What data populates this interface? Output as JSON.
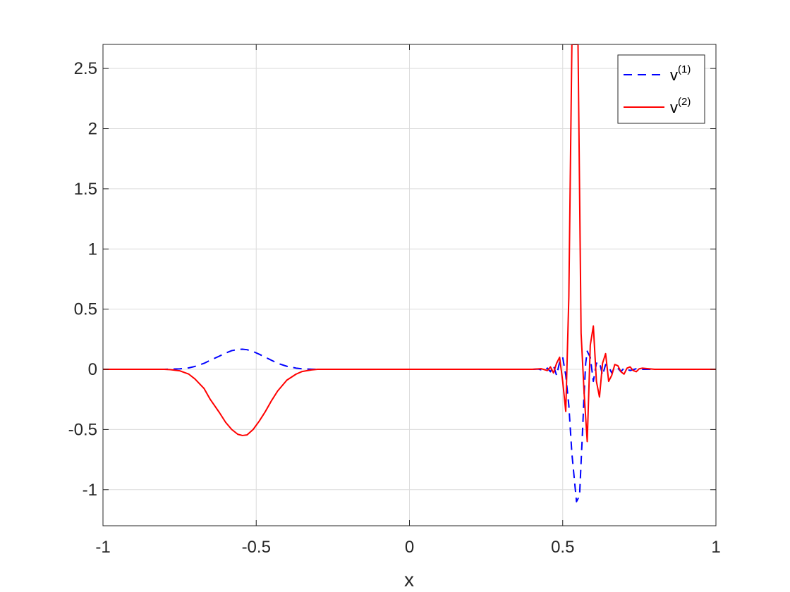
{
  "chart_data": {
    "type": "line",
    "title": "",
    "xlabel": "x",
    "ylabel": "",
    "xlim": [
      -1,
      1
    ],
    "ylim": [
      -1.3,
      2.7
    ],
    "xticks": [
      -1,
      -0.5,
      0,
      0.5,
      1
    ],
    "xtick_labels": [
      "-1",
      "-0.5",
      "0",
      "0.5",
      "1"
    ],
    "yticks": [
      -1,
      -0.5,
      0,
      0.5,
      1,
      1.5,
      2,
      2.5
    ],
    "ytick_labels": [
      "-1",
      "-0.5",
      "0",
      "0.5",
      "1",
      "1.5",
      "2",
      "2.5"
    ],
    "grid": true,
    "legend_position": "top-right",
    "series": [
      {
        "name": "v",
        "name_superscript": "(1)",
        "color": "#0000ff",
        "style": "dashed",
        "x": [
          -1,
          -0.8,
          -0.78,
          -0.75,
          -0.72,
          -0.7,
          -0.67,
          -0.65,
          -0.62,
          -0.6,
          -0.58,
          -0.56,
          -0.545,
          -0.53,
          -0.51,
          -0.49,
          -0.47,
          -0.45,
          -0.43,
          -0.4,
          -0.37,
          -0.35,
          -0.32,
          -0.3,
          0,
          0.4,
          0.42,
          0.44,
          0.45,
          0.46,
          0.47,
          0.48,
          0.49,
          0.5,
          0.51,
          0.52,
          0.53,
          0.545,
          0.555,
          0.565,
          0.57,
          0.575,
          0.58,
          0.59,
          0.6,
          0.61,
          0.62,
          0.63,
          0.64,
          0.65,
          0.66,
          0.67,
          0.68,
          0.69,
          0.7,
          0.72,
          0.74,
          0.76,
          0.8,
          1
        ],
        "y": [
          0,
          0,
          0.001,
          0.004,
          0.012,
          0.024,
          0.05,
          0.075,
          0.11,
          0.135,
          0.155,
          0.165,
          0.167,
          0.163,
          0.148,
          0.125,
          0.1,
          0.075,
          0.05,
          0.025,
          0.01,
          0.004,
          0.001,
          0,
          0,
          0,
          0.002,
          -0.01,
          0.01,
          -0.02,
          0.03,
          -0.05,
          0.06,
          0.1,
          -0.05,
          -0.3,
          -0.7,
          -1.1,
          -1.05,
          -0.5,
          -0.2,
          0.05,
          0.15,
          0.1,
          -0.1,
          0.05,
          0.06,
          -0.05,
          0.04,
          0.02,
          -0.03,
          0.02,
          0.01,
          -0.02,
          0.01,
          -0.01,
          0.005,
          0,
          0,
          0
        ]
      },
      {
        "name": "v",
        "name_superscript": "(2)",
        "color": "#ff0000",
        "style": "solid",
        "x": [
          -1,
          -0.8,
          -0.78,
          -0.75,
          -0.72,
          -0.7,
          -0.67,
          -0.65,
          -0.62,
          -0.6,
          -0.58,
          -0.56,
          -0.545,
          -0.53,
          -0.51,
          -0.49,
          -0.47,
          -0.45,
          -0.43,
          -0.4,
          -0.37,
          -0.35,
          -0.32,
          -0.3,
          0,
          0.4,
          0.43,
          0.45,
          0.46,
          0.47,
          0.48,
          0.49,
          0.5,
          0.51,
          0.52,
          0.53,
          0.54,
          0.55,
          0.56,
          0.57,
          0.58,
          0.59,
          0.6,
          0.61,
          0.62,
          0.63,
          0.64,
          0.65,
          0.66,
          0.67,
          0.68,
          0.69,
          0.7,
          0.71,
          0.72,
          0.73,
          0.74,
          0.75,
          0.76,
          0.8,
          1
        ],
        "y": [
          0,
          0,
          -0.003,
          -0.012,
          -0.04,
          -0.08,
          -0.16,
          -0.25,
          -0.36,
          -0.44,
          -0.5,
          -0.54,
          -0.55,
          -0.545,
          -0.5,
          -0.43,
          -0.35,
          -0.26,
          -0.18,
          -0.09,
          -0.04,
          -0.018,
          -0.005,
          0,
          0,
          0,
          0.005,
          -0.01,
          0.02,
          -0.03,
          0.05,
          0.1,
          -0.1,
          -0.35,
          0.6,
          2.7,
          2.7,
          2.7,
          0.3,
          -0.2,
          -0.6,
          0.2,
          0.36,
          -0.1,
          -0.23,
          0.05,
          0.13,
          -0.1,
          -0.05,
          0.04,
          0.03,
          -0.02,
          -0.04,
          0.01,
          0.02,
          -0.01,
          -0.02,
          0.005,
          0.01,
          0,
          0
        ]
      }
    ]
  }
}
